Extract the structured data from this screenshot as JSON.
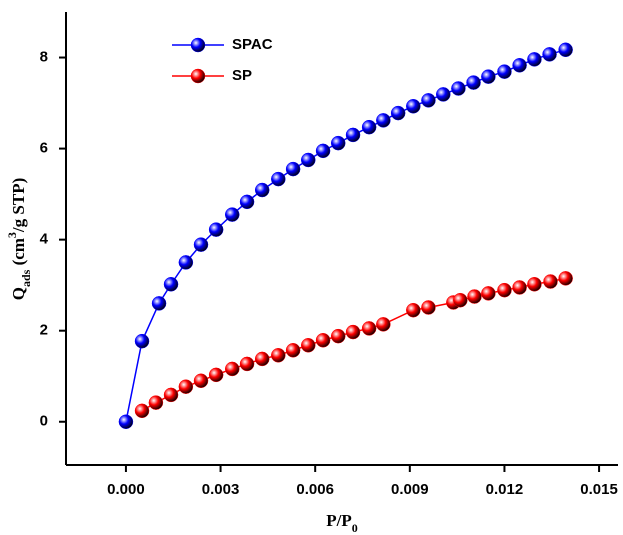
{
  "chart_data": {
    "type": "line",
    "x_label": [
      {
        "text": "P/P"
      },
      {
        "text": "0",
        "sub": true
      }
    ],
    "y_label": [
      {
        "text": "Q"
      },
      {
        "text": "ads",
        "sub": true
      },
      {
        "text": " (cm"
      },
      {
        "text": "3",
        "sup": true
      },
      {
        "text": "/g STP)"
      }
    ],
    "xlim": [
      -0.0019,
      0.0156
    ],
    "ylim": [
      -0.95,
      9.0
    ],
    "xticks": [
      {
        "value": 0,
        "label": "0.000"
      },
      {
        "value": 0.003,
        "label": "0.003"
      },
      {
        "value": 0.006,
        "label": "0.006"
      },
      {
        "value": 0.009,
        "label": "0.009"
      },
      {
        "value": 0.012,
        "label": "0.012"
      },
      {
        "value": 0.015,
        "label": "0.015"
      }
    ],
    "yticks": [
      0,
      2,
      4,
      6,
      8
    ],
    "legend": "upper left",
    "series": [
      {
        "name": "SPAC",
        "color": "#0000ff",
        "x": [
          0,
          0.00051,
          0.00105,
          0.00143,
          0.0019,
          0.00238,
          0.00286,
          0.00337,
          0.00384,
          0.00432,
          0.00483,
          0.0053,
          0.00578,
          0.00625,
          0.00673,
          0.0072,
          0.00771,
          0.00816,
          0.00863,
          0.00911,
          0.00959,
          0.01006,
          0.01054,
          0.01102,
          0.01149,
          0.012,
          0.01248,
          0.01295,
          0.01343,
          0.01394
        ],
        "values": [
          0,
          1.77,
          2.6,
          3.02,
          3.5,
          3.89,
          4.22,
          4.55,
          4.83,
          5.09,
          5.33,
          5.55,
          5.75,
          5.95,
          6.12,
          6.3,
          6.47,
          6.62,
          6.78,
          6.93,
          7.06,
          7.19,
          7.32,
          7.45,
          7.58,
          7.69,
          7.83,
          7.96,
          8.07,
          8.17
        ]
      },
      {
        "name": "SP",
        "color": "#ff0000",
        "x": [
          0.00051,
          0.00095,
          0.00143,
          0.0019,
          0.00238,
          0.00286,
          0.00337,
          0.00384,
          0.00432,
          0.00483,
          0.0053,
          0.00578,
          0.00625,
          0.00673,
          0.0072,
          0.00771,
          0.00816,
          0.00911,
          0.00959,
          0.01038,
          0.0106,
          0.01105,
          0.01149,
          0.012,
          0.01248,
          0.01295,
          0.01346,
          0.01394
        ],
        "values": [
          0.24,
          0.42,
          0.59,
          0.77,
          0.9,
          1.03,
          1.16,
          1.27,
          1.38,
          1.46,
          1.57,
          1.68,
          1.79,
          1.88,
          1.97,
          2.05,
          2.14,
          2.45,
          2.51,
          2.62,
          2.67,
          2.75,
          2.82,
          2.89,
          2.95,
          3.02,
          3.08,
          3.15
        ]
      }
    ]
  }
}
